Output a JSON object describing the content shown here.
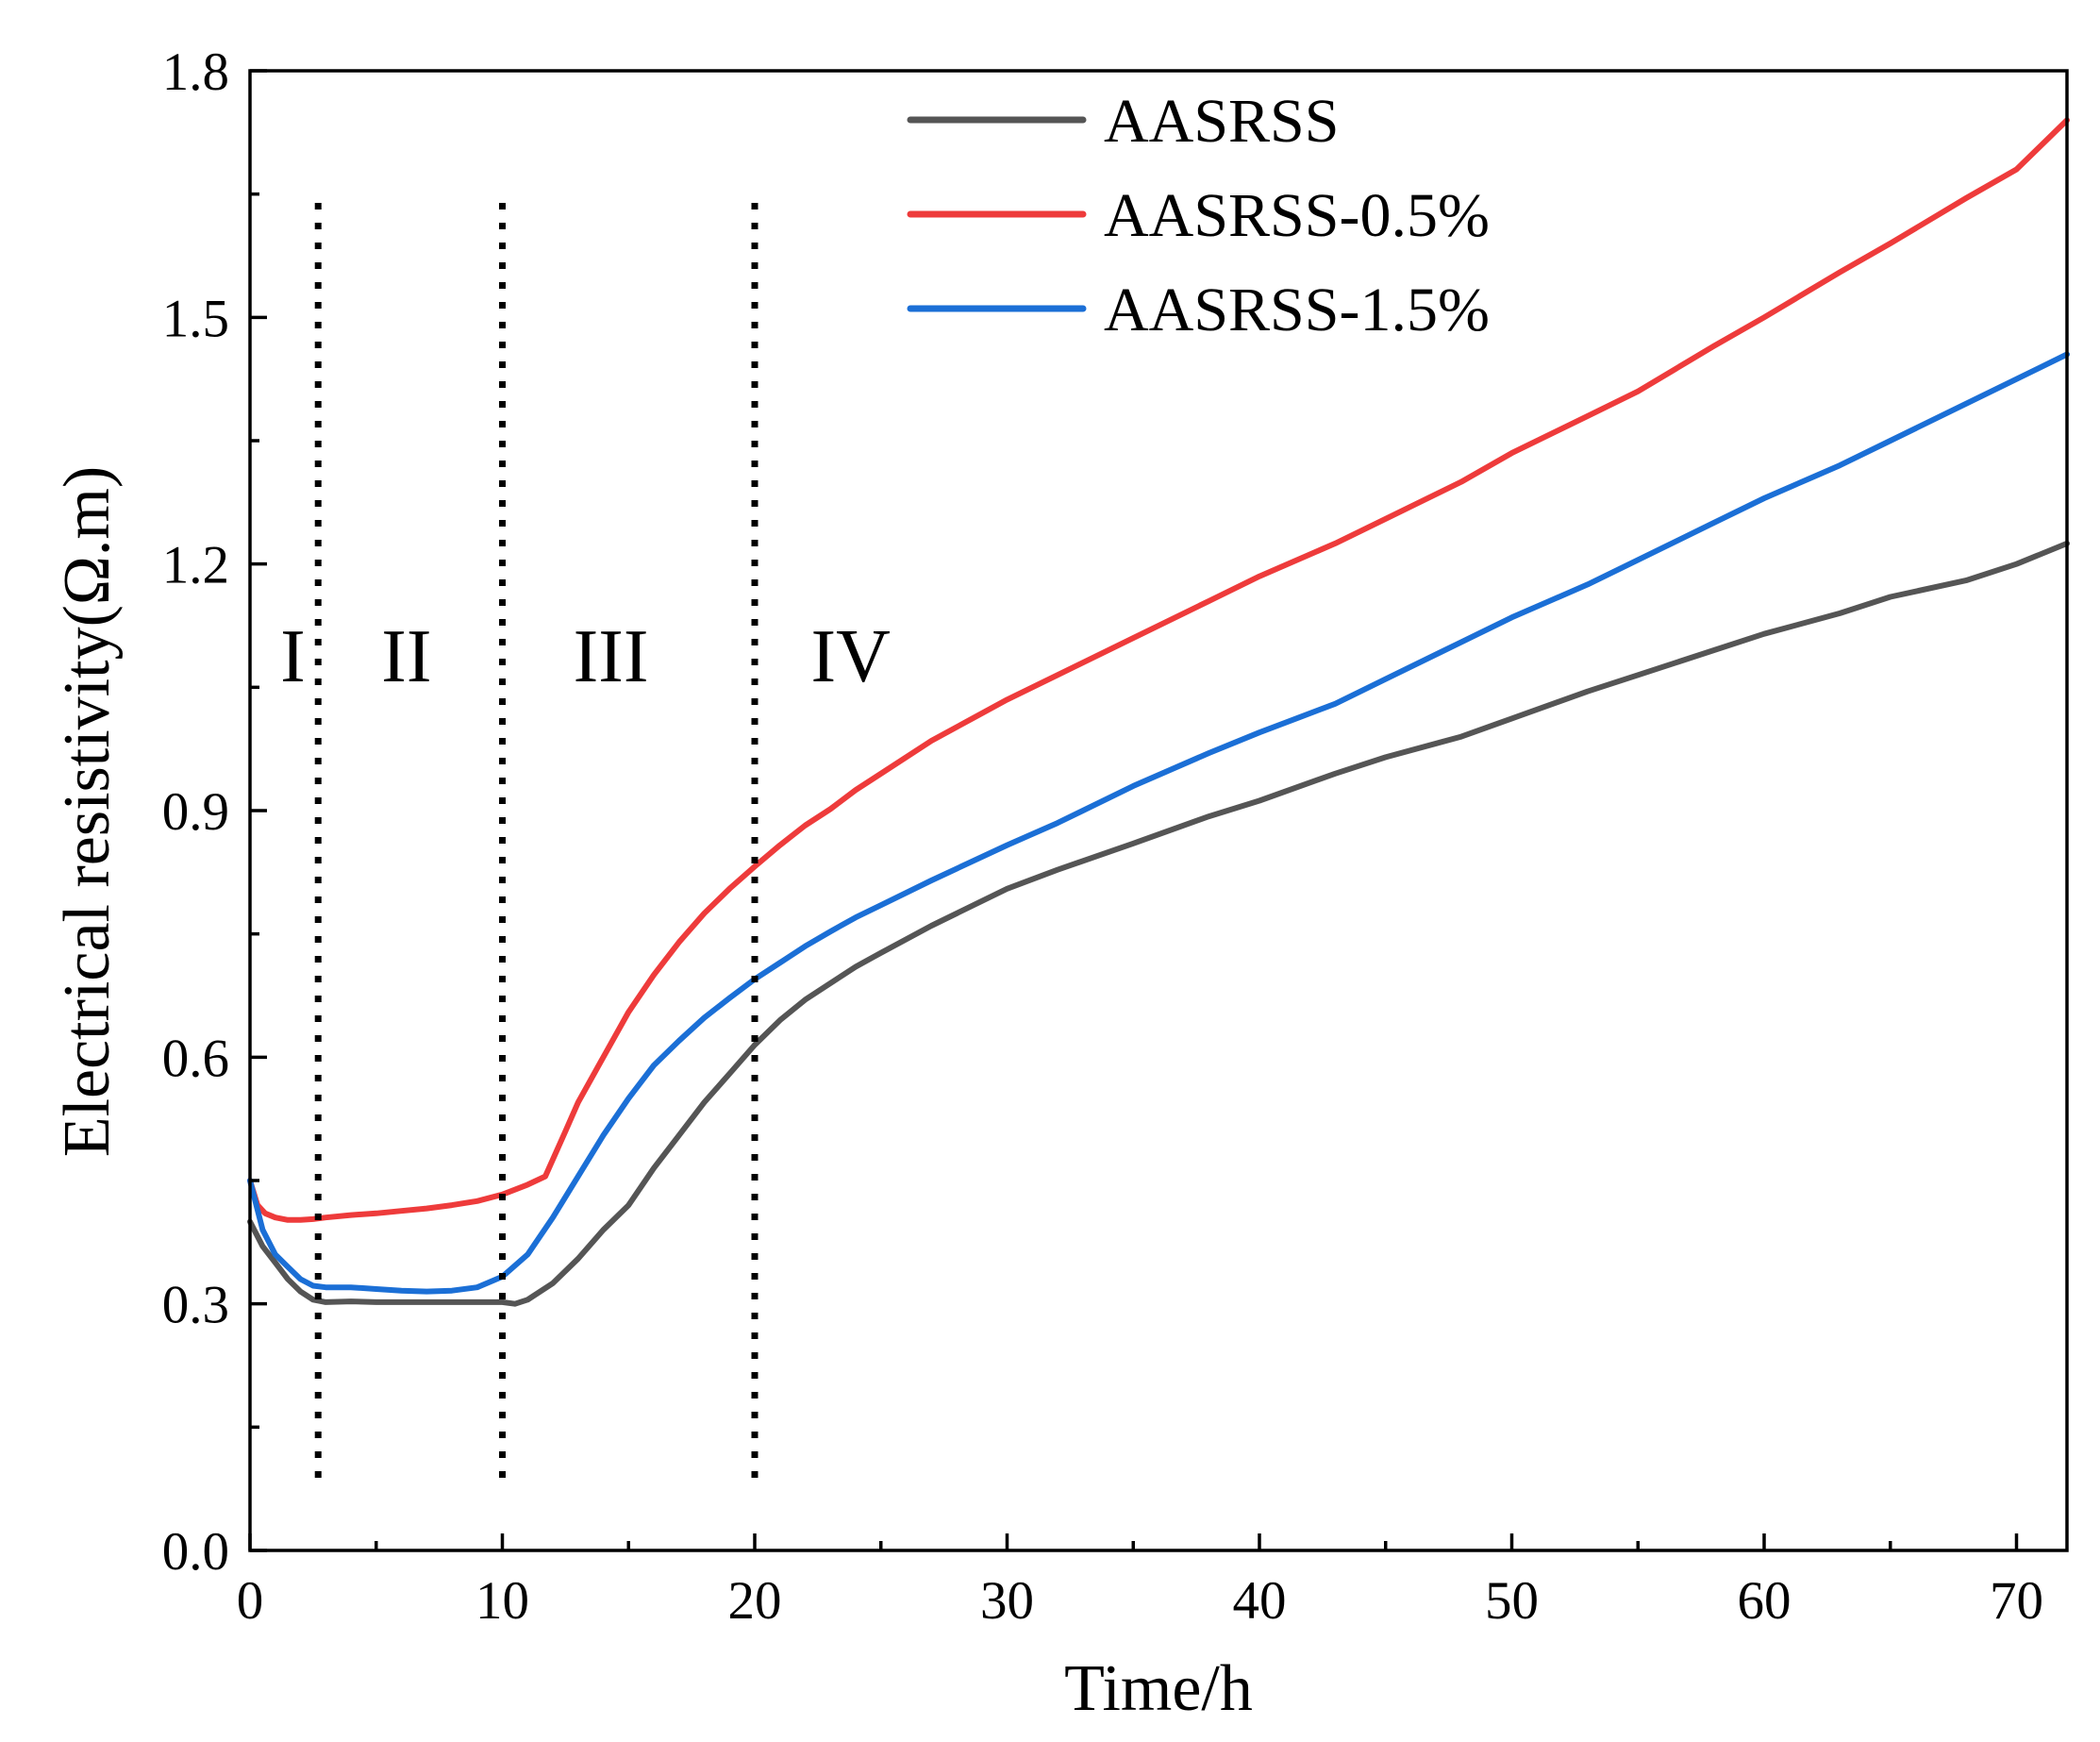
{
  "chart_data": {
    "type": "line",
    "title": "",
    "xlabel": "Time/h",
    "ylabel": "Electrical resistivity(Ω.m)",
    "xlim": [
      0,
      72
    ],
    "ylim": [
      0,
      1.8
    ],
    "xticks": [
      0,
      10,
      20,
      30,
      40,
      50,
      60,
      70
    ],
    "xtick_labels": [
      "0",
      "10",
      "20",
      "30",
      "40",
      "50",
      "60",
      "70"
    ],
    "yticks": [
      0,
      0.3,
      0.6,
      0.9,
      1.2,
      1.5,
      1.8
    ],
    "ytick_labels": [
      "0.0",
      "0.3",
      "0.6",
      "0.9",
      "1.2",
      "1.5",
      "1.8"
    ],
    "legend_position": "top-right",
    "grid": false,
    "stage_boundaries": [
      2.7,
      10,
      20
    ],
    "stages": [
      {
        "label": "I",
        "x": 1.7
      },
      {
        "label": "II",
        "x": 6.2
      },
      {
        "label": "III",
        "x": 14.3
      },
      {
        "label": "IV",
        "x": 23.8
      }
    ],
    "series": [
      {
        "name": "AASRSS",
        "color": "#555555",
        "x": [
          0,
          0.5,
          1,
          1.5,
          2,
          2.5,
          3,
          4,
          5,
          6,
          7,
          8,
          9,
          10,
          10.5,
          11,
          12,
          13,
          14,
          15,
          16,
          17,
          18,
          19,
          20,
          21,
          22,
          23,
          24,
          25,
          27,
          30,
          32,
          35,
          38,
          40,
          43,
          45,
          48,
          50,
          53,
          55,
          58,
          60,
          63,
          65,
          68,
          70,
          72
        ],
        "values": [
          0.4,
          0.37,
          0.35,
          0.33,
          0.315,
          0.305,
          0.302,
          0.303,
          0.302,
          0.302,
          0.302,
          0.302,
          0.302,
          0.302,
          0.3,
          0.305,
          0.325,
          0.355,
          0.39,
          0.42,
          0.465,
          0.505,
          0.545,
          0.58,
          0.615,
          0.645,
          0.67,
          0.69,
          0.71,
          0.727,
          0.76,
          0.805,
          0.828,
          0.86,
          0.893,
          0.912,
          0.945,
          0.965,
          0.99,
          1.012,
          1.045,
          1.065,
          1.095,
          1.115,
          1.14,
          1.16,
          1.18,
          1.2,
          1.225
        ]
      },
      {
        "name": "AASRSS-0.5%",
        "color": "#ee3b3b",
        "x": [
          0,
          0.3,
          0.6,
          1,
          1.5,
          2,
          2.5,
          3,
          4,
          5,
          6,
          7,
          8,
          9,
          10,
          11,
          11.7,
          12.5,
          13,
          14,
          15,
          16,
          17,
          18,
          19,
          20,
          21,
          22,
          23,
          24,
          25,
          27,
          30,
          32,
          35,
          38,
          40,
          43,
          45,
          48,
          50,
          53,
          55,
          58,
          60,
          63,
          65,
          68,
          70,
          72
        ],
        "values": [
          0.45,
          0.42,
          0.41,
          0.405,
          0.402,
          0.402,
          0.403,
          0.405,
          0.408,
          0.41,
          0.413,
          0.416,
          0.42,
          0.425,
          0.433,
          0.445,
          0.455,
          0.51,
          0.545,
          0.6,
          0.655,
          0.7,
          0.74,
          0.775,
          0.805,
          0.832,
          0.858,
          0.882,
          0.902,
          0.925,
          0.945,
          0.985,
          1.035,
          1.065,
          1.11,
          1.155,
          1.185,
          1.225,
          1.255,
          1.3,
          1.335,
          1.38,
          1.41,
          1.465,
          1.5,
          1.555,
          1.59,
          1.645,
          1.68,
          1.74
        ]
      },
      {
        "name": "AASRSS-1.5%",
        "color": "#1b6fd6",
        "x": [
          0,
          0.5,
          1,
          1.5,
          2,
          2.5,
          3,
          4,
          5,
          6,
          7,
          8,
          9,
          10,
          11,
          12,
          13,
          14,
          15,
          16,
          17,
          18,
          19,
          20,
          21,
          22,
          23,
          24,
          25,
          27,
          30,
          32,
          35,
          38,
          40,
          43,
          45,
          48,
          50,
          53,
          55,
          58,
          60,
          63,
          65,
          68,
          70,
          72
        ],
        "values": [
          0.45,
          0.39,
          0.36,
          0.345,
          0.33,
          0.322,
          0.32,
          0.32,
          0.318,
          0.316,
          0.315,
          0.316,
          0.32,
          0.333,
          0.36,
          0.405,
          0.455,
          0.505,
          0.55,
          0.59,
          0.62,
          0.648,
          0.672,
          0.695,
          0.715,
          0.735,
          0.753,
          0.77,
          0.785,
          0.815,
          0.858,
          0.885,
          0.93,
          0.97,
          0.995,
          1.03,
          1.06,
          1.105,
          1.135,
          1.175,
          1.205,
          1.25,
          1.28,
          1.32,
          1.35,
          1.395,
          1.425,
          1.455
        ]
      }
    ]
  }
}
